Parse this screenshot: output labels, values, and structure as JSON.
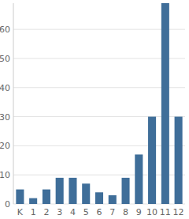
{
  "chart_data": {
    "type": "bar",
    "categories": [
      "K",
      "1",
      "2",
      "3",
      "4",
      "5",
      "6",
      "7",
      "8",
      "9",
      "10",
      "11",
      "12"
    ],
    "values": [
      5,
      2,
      5,
      9,
      9,
      7,
      4,
      3,
      9,
      17,
      30,
      69,
      30
    ],
    "color": "#3f6e99",
    "ylim": [
      0,
      69
    ],
    "yticks": [
      0,
      10,
      20,
      30,
      40,
      50,
      60
    ],
    "grid": true
  }
}
